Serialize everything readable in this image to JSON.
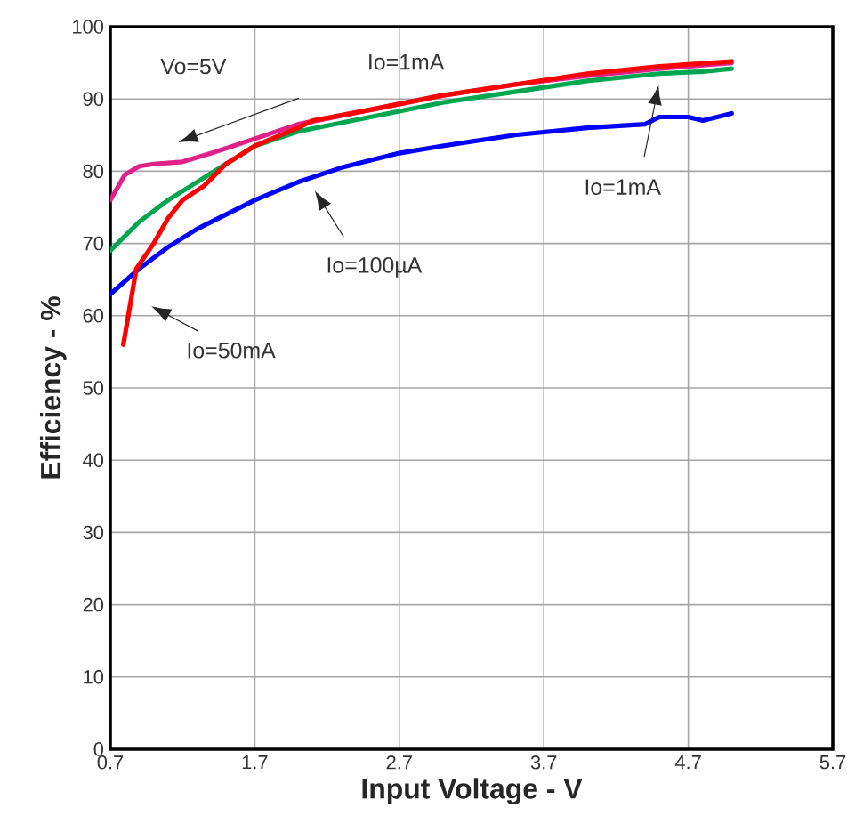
{
  "chart_data": {
    "type": "line",
    "xlabel": "Input Voltage - V",
    "ylabel": "Efficiency - %",
    "xlim": [
      0.7,
      5.7
    ],
    "ylim": [
      0,
      100
    ],
    "xticks": [
      0.7,
      1.7,
      2.7,
      3.7,
      4.7,
      5.7
    ],
    "yticks": [
      0,
      10,
      20,
      30,
      40,
      50,
      60,
      70,
      80,
      90,
      100
    ],
    "grid": true,
    "marker": "none",
    "line_style": "solid",
    "annotations": [
      "Vo=5V",
      "Io=1mA",
      "Io=100µA",
      "Io=50mA",
      "Io=1mA"
    ],
    "series": [
      {
        "color": "#0000ff",
        "x": [
          0.7,
          0.9,
          1.1,
          1.3,
          1.5,
          1.7,
          2.0,
          2.3,
          2.7,
          3.0,
          3.5,
          4.0,
          4.4,
          4.5,
          4.7,
          4.8,
          5.0
        ],
        "values": [
          63,
          66.5,
          69.5,
          72,
          74,
          76,
          78.5,
          80.5,
          82.5,
          83.5,
          85,
          86,
          86.5,
          87.5,
          87.5,
          87,
          88
        ]
      },
      {
        "color": "#00a650",
        "x": [
          0.7,
          0.9,
          1.1,
          1.3,
          1.5,
          1.7,
          2.0,
          2.5,
          3.0,
          3.5,
          4.0,
          4.5,
          4.8,
          5.0
        ],
        "values": [
          69,
          73,
          76,
          78.5,
          81,
          83.5,
          85.5,
          87.5,
          89.5,
          91,
          92.5,
          93.5,
          93.8,
          94.2
        ]
      },
      {
        "color": "#e0218a",
        "x": [
          0.7,
          0.8,
          0.9,
          1.0,
          1.2,
          1.4,
          1.7,
          2.0,
          2.5,
          3.0,
          3.5,
          4.0,
          4.5,
          5.0
        ],
        "values": [
          76,
          79.5,
          80.7,
          81,
          81.3,
          82.5,
          84.5,
          86.5,
          88.5,
          90.5,
          92,
          93.2,
          94.2,
          95
        ]
      },
      {
        "color": "#ff0000",
        "x": [
          0.79,
          0.88,
          1.0,
          1.1,
          1.2,
          1.35,
          1.5,
          1.7,
          2.0,
          2.1,
          2.5,
          3.0,
          3.5,
          4.0,
          4.5,
          5.0
        ],
        "values": [
          56,
          66.5,
          70,
          73.5,
          76,
          78,
          81,
          83.5,
          86,
          87,
          88.5,
          90.5,
          92,
          93.5,
          94.5,
          95.2
        ]
      }
    ]
  }
}
